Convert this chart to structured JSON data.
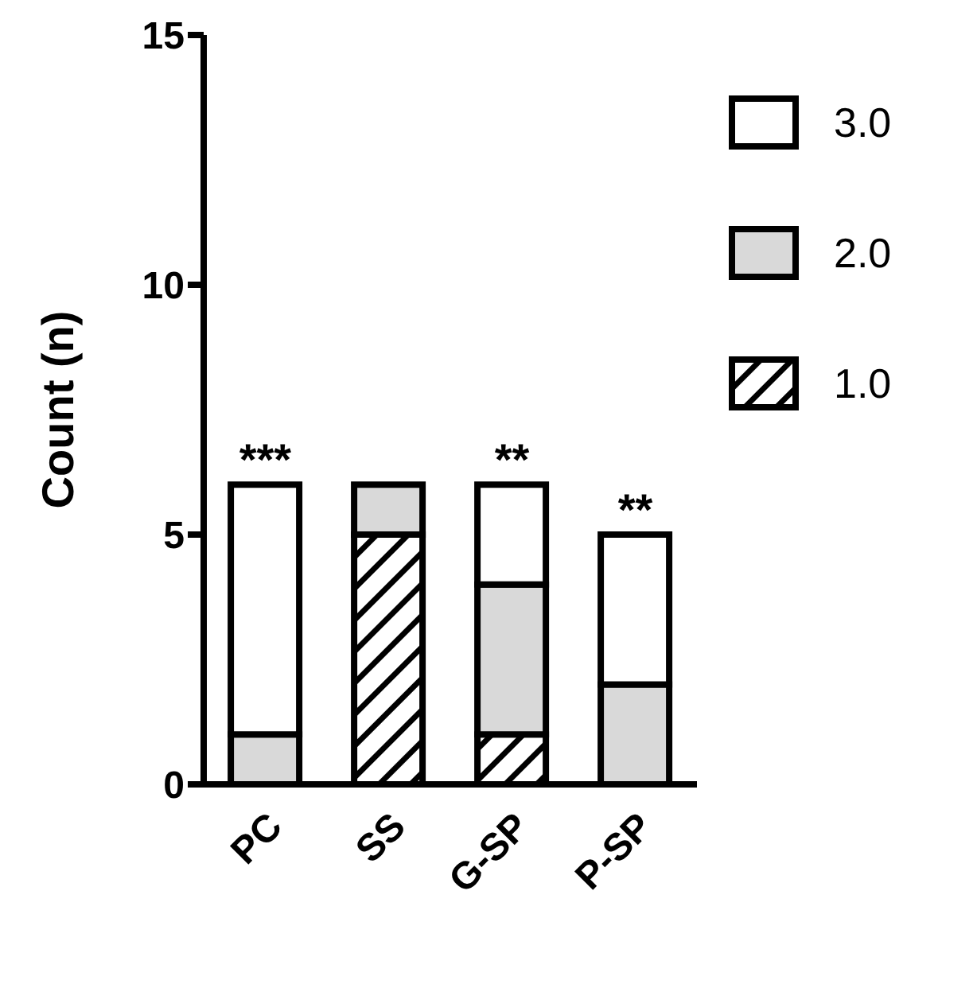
{
  "chart_data": {
    "type": "bar",
    "stacked": true,
    "ylabel": "Count (n)",
    "categories": [
      "PC",
      "SS",
      "G-SP",
      "P-SP"
    ],
    "series": [
      {
        "name": "1.0",
        "color": "#000000",
        "values": [
          0,
          5,
          1,
          0
        ]
      },
      {
        "name": "2.0",
        "color": "#d9d9d9",
        "values": [
          1,
          1,
          3,
          2
        ]
      },
      {
        "name": "3.0",
        "color": "#ffffff",
        "values": [
          5,
          0,
          2,
          3
        ]
      }
    ],
    "ylim": [
      0,
      15
    ],
    "yticks": [
      0,
      5,
      10,
      15
    ],
    "grid": false,
    "legend": "top right",
    "annotations": [
      {
        "text": "***",
        "x": "PC",
        "y": 6
      },
      {
        "text": "**",
        "x": "G-SP",
        "y": 6
      },
      {
        "text": "**",
        "x": "P-SP",
        "y": 5
      }
    ]
  }
}
